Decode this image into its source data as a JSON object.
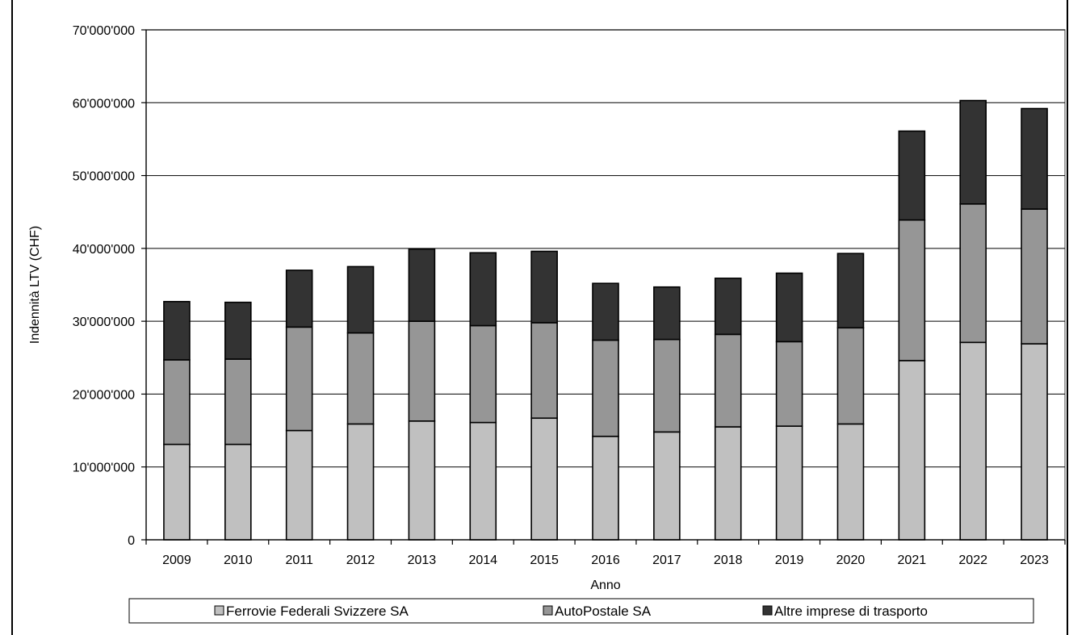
{
  "chart_data": {
    "type": "bar",
    "stacked": true,
    "title": "",
    "xlabel": "Anno",
    "ylabel": "Indennità LTV (CHF)",
    "ylim": [
      0,
      70000000
    ],
    "yticks": [
      0,
      10000000,
      20000000,
      30000000,
      40000000,
      50000000,
      60000000,
      70000000
    ],
    "ytick_labels": [
      "0",
      "10'000'000",
      "20'000'000",
      "30'000'000",
      "40'000'000",
      "50'000'000",
      "60'000'000",
      "70'000'000"
    ],
    "grid": true,
    "legend_position": "bottom",
    "categories": [
      "2009",
      "2010",
      "2011",
      "2012",
      "2013",
      "2014",
      "2015",
      "2016",
      "2017",
      "2018",
      "2019",
      "2020",
      "2021",
      "2022",
      "2023"
    ],
    "series": [
      {
        "name": "Ferrovie Federali Svizzere SA",
        "color": "#c0c0c0",
        "values": [
          13100000,
          13100000,
          15000000,
          15900000,
          16300000,
          16100000,
          16700000,
          14200000,
          14800000,
          15500000,
          15600000,
          15900000,
          24600000,
          27100000,
          26900000
        ]
      },
      {
        "name": "AutoPostale SA",
        "color": "#969696",
        "values": [
          11600000,
          11700000,
          14200000,
          12500000,
          13700000,
          13300000,
          13100000,
          13200000,
          12700000,
          12700000,
          11600000,
          13200000,
          19300000,
          19000000,
          18500000
        ]
      },
      {
        "name": "Altre imprese di trasporto",
        "color": "#333333",
        "values": [
          8000000,
          7800000,
          7800000,
          9100000,
          9900000,
          10000000,
          9800000,
          7800000,
          7200000,
          7700000,
          9400000,
          10200000,
          12200000,
          14200000,
          13800000
        ]
      }
    ]
  }
}
